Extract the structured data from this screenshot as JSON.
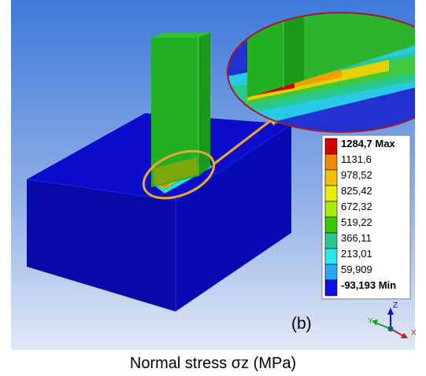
{
  "legend": {
    "colors": [
      "#d40000",
      "#f28a00",
      "#f2c000",
      "#e6f000",
      "#aaeb00",
      "#3cc800",
      "#28c890",
      "#28e8e8",
      "#28a8f0",
      "#1010e0"
    ],
    "labels": [
      "1284,7 Max",
      "1131,6",
      "978,52",
      "825,42",
      "672,32",
      "519,22",
      "366,11",
      "213,01",
      "59,909",
      "-93,193 Min"
    ]
  },
  "panel_tag": "(b)",
  "axes": {
    "x": "X",
    "y": "Y",
    "z": "Z"
  },
  "caption": "Normal stress σz (MPa)",
  "colors": {
    "background_top": "#3f79d9",
    "background_bottom": "#e2e8f7",
    "block": "#0a0acb",
    "column": "#22b022",
    "zoom_border": "#a01c2c",
    "highlight": "#e9a92a"
  }
}
